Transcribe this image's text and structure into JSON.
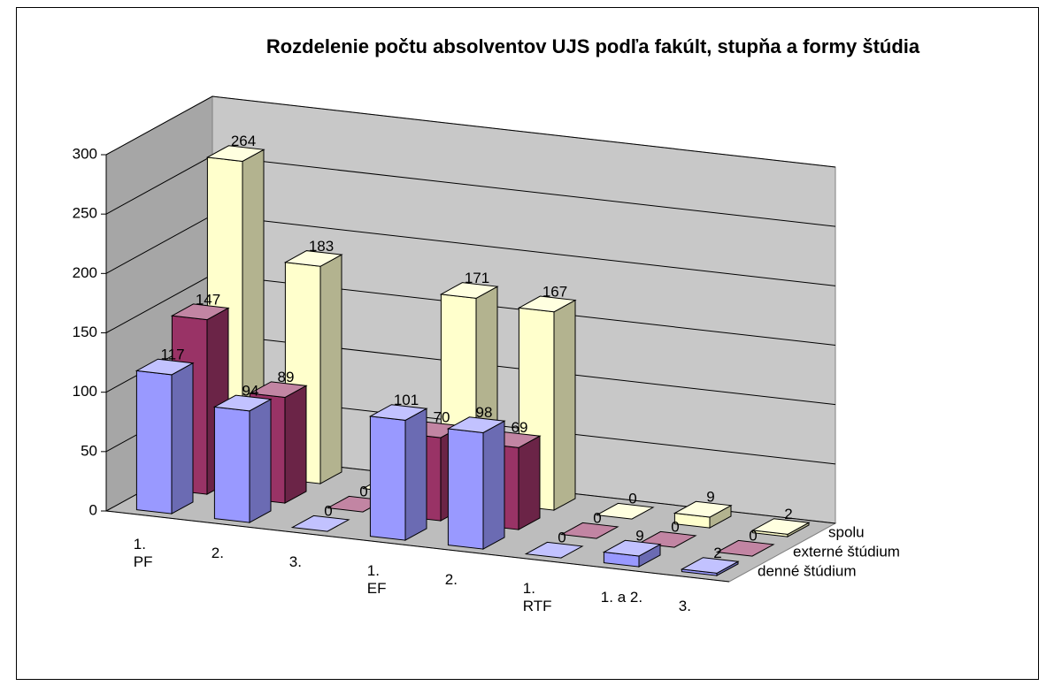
{
  "chart_data": {
    "type": "bar3d",
    "title": "Rozdelenie počtu absolventov UJS podľa fakúlt, stupňa a formy štúdia",
    "categories": [
      "1.\nPF",
      "2.",
      "3.",
      "1.\nEF",
      "2.",
      "1.\nRTF",
      "1. a 2.",
      "3."
    ],
    "series": [
      {
        "name": "denné štúdium",
        "color": "#9999ff",
        "values": [
          117,
          94,
          0,
          101,
          98,
          0,
          9,
          2
        ]
      },
      {
        "name": "externé štúdium",
        "color": "#993366",
        "values": [
          147,
          89,
          0,
          70,
          69,
          0,
          0,
          0
        ]
      },
      {
        "name": "spolu",
        "color": "#ffffcc",
        "values": [
          264,
          183,
          0,
          171,
          167,
          0,
          9,
          2
        ]
      }
    ],
    "ylim": [
      0,
      300
    ],
    "yticks": [
      0,
      50,
      100,
      150,
      200,
      250,
      300
    ],
    "grid": true
  }
}
